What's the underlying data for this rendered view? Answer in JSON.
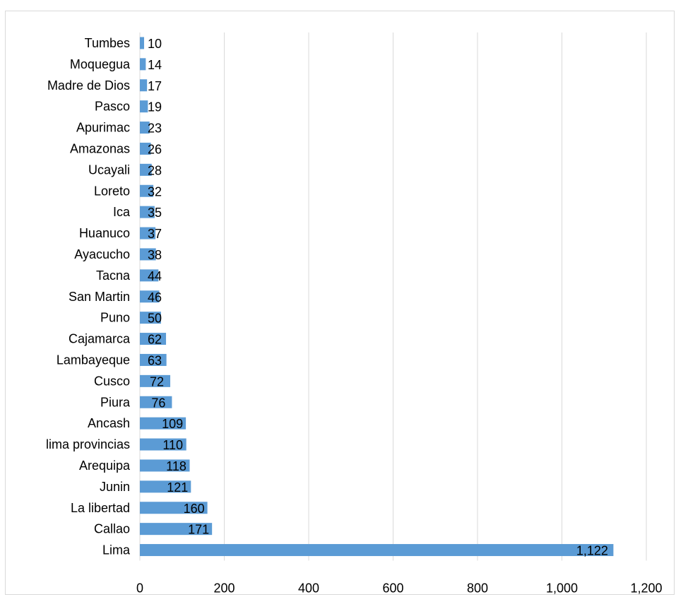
{
  "chart_data": {
    "type": "bar",
    "orientation": "horizontal",
    "categories": [
      "Lima",
      "Callao",
      "La libertad",
      "Junin",
      "Arequipa",
      "lima provincias",
      "Ancash",
      "Piura",
      "Cusco",
      "Lambayeque",
      "Cajamarca",
      "Puno",
      "San Martin",
      "Tacna",
      "Ayacucho",
      "Huanuco",
      "Ica",
      "Loreto",
      "Ucayali",
      "Amazonas",
      "Apurimac",
      "Pasco",
      "Madre de Dios",
      "Moquegua",
      "Tumbes"
    ],
    "values": [
      1122,
      171,
      160,
      121,
      118,
      110,
      109,
      76,
      72,
      63,
      62,
      50,
      46,
      44,
      38,
      37,
      35,
      32,
      28,
      26,
      23,
      19,
      17,
      14,
      10
    ],
    "value_labels": [
      "1,122",
      "171",
      "160",
      "121",
      "118",
      "110",
      "109",
      "76",
      "72",
      "63",
      "62",
      "50",
      "46",
      "44",
      "38",
      "37",
      "35",
      "32",
      "28",
      "26",
      "23",
      "19",
      "17",
      "14",
      "10"
    ],
    "x_ticks": [
      "0",
      "200",
      "400",
      "600",
      "800",
      "1,000",
      "1,200"
    ],
    "xlim": [
      0,
      1200
    ],
    "title": "",
    "xlabel": "",
    "ylabel": "",
    "grid": "vertical",
    "legend": "none",
    "bar_color": "#5b9bd5",
    "grid_color": "#d9d9d9"
  }
}
